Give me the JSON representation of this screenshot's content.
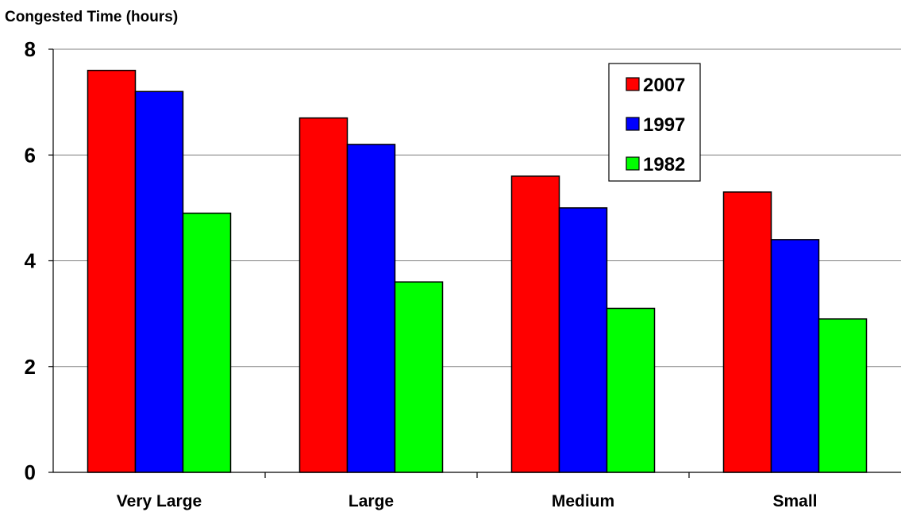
{
  "chart_data": {
    "type": "bar",
    "title": "",
    "ylabel": "Congested Time (hours)",
    "xlabel": "",
    "categories": [
      "Very Large",
      "Large",
      "Medium",
      "Small"
    ],
    "series": [
      {
        "name": "2007",
        "color": "#ff0000",
        "values": [
          7.6,
          6.7,
          5.6,
          5.3
        ]
      },
      {
        "name": "1997",
        "color": "#0000ff",
        "values": [
          7.2,
          6.2,
          5.0,
          4.4
        ]
      },
      {
        "name": "1982",
        "color": "#00ff00",
        "values": [
          4.9,
          3.6,
          3.1,
          2.9
        ]
      }
    ],
    "ylim": [
      0,
      8
    ],
    "yticks": [
      0,
      2,
      4,
      6,
      8
    ],
    "ytick_labels": [
      "0",
      "2",
      "4",
      "6",
      "8"
    ],
    "grid": true,
    "legend_position": "top-right"
  }
}
